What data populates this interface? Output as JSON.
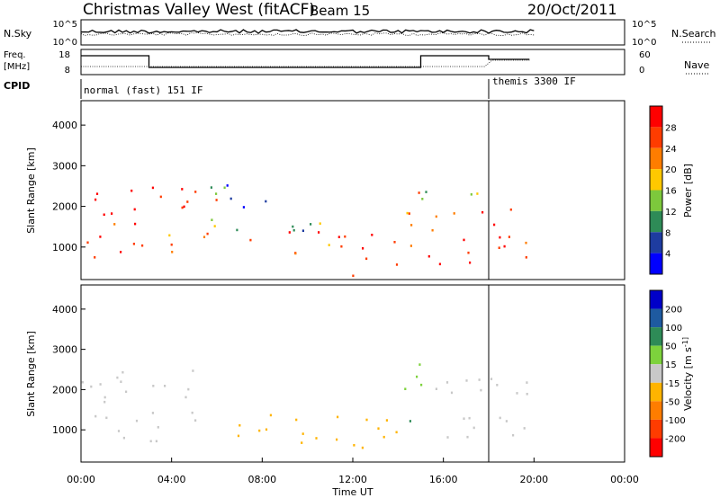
{
  "header": {
    "title": "Christmas Valley West (fitACF)",
    "beam": "Beam 15",
    "date": "20/Oct/2011"
  },
  "strips": {
    "nsky": {
      "label": "N.Sky",
      "ticks": [
        "10^5",
        "10^0"
      ],
      "right_label": "N.Search",
      "right_ticks": [
        "10^5",
        "10^0"
      ]
    },
    "freq": {
      "label_line1": "Freq.",
      "label_line2": "[MHz]",
      "ticks": [
        "18",
        "8"
      ],
      "right_label": "Nave",
      "right_ticks": [
        "60",
        "0"
      ]
    },
    "cpid": {
      "label": "CPID",
      "modes": [
        "normal (fast) 151 IF",
        "themis 3300 IF"
      ]
    }
  },
  "time_axis": {
    "label": "Time UT",
    "ticks": [
      "00:00",
      "04:00",
      "08:00",
      "12:00",
      "16:00",
      "20:00",
      "00:00"
    ]
  },
  "chart_data": [
    {
      "type": "heatmap",
      "panel": "power",
      "ylabel": "Slant Range [km]",
      "xlabel": "Time UT",
      "x_range_hours": [
        0,
        24
      ],
      "ylim": [
        200,
        4600
      ],
      "yticks": [
        1000,
        2000,
        3000,
        4000
      ],
      "colorbar": {
        "label": "Power [dB]",
        "ticks": [
          "28",
          "24",
          "20",
          "16",
          "12",
          "8",
          "4"
        ],
        "colors": [
          "#ff0000",
          "#ff3c00",
          "#ff7d00",
          "#ffc800",
          "#7dc83c",
          "#2e8b57",
          "#1e3ca0",
          "#0000ff"
        ]
      },
      "scatter_regions": [
        {
          "t0": 0.0,
          "t1": 3.0,
          "r0": 700,
          "r1": 2500,
          "level": 28
        },
        {
          "t0": 3.0,
          "t1": 6.0,
          "r0": 900,
          "r1": 2500,
          "level": 24
        },
        {
          "t0": 5.2,
          "t1": 11.5,
          "r0": 800,
          "r1": 1400,
          "level": 24
        },
        {
          "t0": 5.2,
          "t1": 11.5,
          "r0": 1400,
          "r1": 1900,
          "level": 12
        },
        {
          "t0": 5.5,
          "t1": 9.5,
          "r0": 2000,
          "r1": 2700,
          "level": 6
        },
        {
          "t0": 11.5,
          "t1": 14.0,
          "r0": 250,
          "r1": 1400,
          "level": 28
        },
        {
          "t0": 14.0,
          "t1": 15.0,
          "r0": 1000,
          "r1": 2800,
          "level": 20
        },
        {
          "t0": 15.0,
          "t1": 19.8,
          "r0": 600,
          "r1": 2000,
          "level": 24
        },
        {
          "t0": 15.0,
          "t1": 19.8,
          "r0": 2100,
          "r1": 2400,
          "level": 12
        }
      ]
    },
    {
      "type": "heatmap",
      "panel": "velocity",
      "ylabel": "Slant Range [km]",
      "xlabel": "Time UT",
      "x_range_hours": [
        0,
        24
      ],
      "ylim": [
        200,
        4600
      ],
      "yticks": [
        1000,
        2000,
        3000,
        4000
      ],
      "colorbar": {
        "label": "Velocity [m s^-1]",
        "ticks": [
          "200",
          "100",
          "50",
          "15",
          "-15",
          "-50",
          "-100",
          "-200"
        ],
        "colors": [
          "#0000c8",
          "#1e5aa0",
          "#2e8b57",
          "#7dd23c",
          "#c8c8c8",
          "#ffb400",
          "#ff7d00",
          "#ff3c00",
          "#ff0000"
        ]
      },
      "scatter_regions": [
        {
          "t0": 0.0,
          "t1": 5.5,
          "r0": 700,
          "r1": 2500,
          "level": 0
        },
        {
          "t0": 5.2,
          "t1": 11.5,
          "r0": 700,
          "r1": 1400,
          "level": -40
        },
        {
          "t0": 11.5,
          "t1": 14.0,
          "r0": 250,
          "r1": 1400,
          "level": -30
        },
        {
          "t0": 14.0,
          "t1": 15.0,
          "r0": 1000,
          "r1": 2800,
          "level": 30
        },
        {
          "t0": 15.0,
          "t1": 19.8,
          "r0": 700,
          "r1": 2400,
          "level": 0
        }
      ]
    }
  ]
}
